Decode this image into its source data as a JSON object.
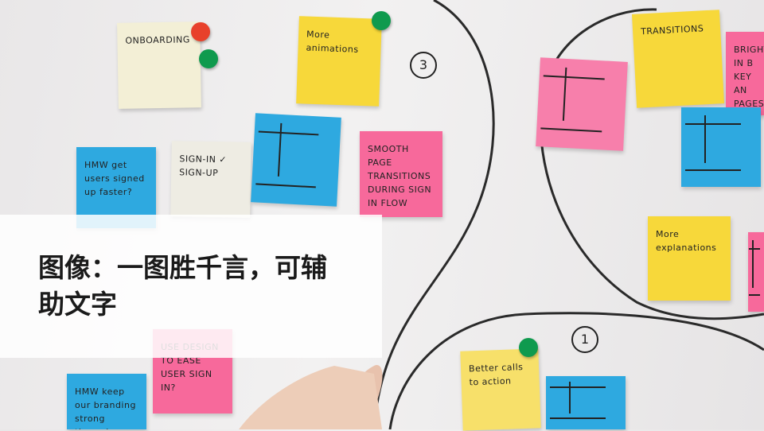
{
  "caption": {
    "title": "图像：一图胜千言，可辅助文字"
  },
  "notes": [
    {
      "label": "ONBOARDING"
    },
    {
      "label": "More animations"
    },
    {
      "label": "SMOOTH PAGE TRANSITIONS DURING SIGN IN FLOW"
    },
    {
      "label": "HMW get users signed up faster?"
    },
    {
      "label": "SIGN-IN ✓ SIGN-UP"
    },
    {
      "label": "TRANSITIONS"
    },
    {
      "label": "BRIGHT IN B KEY AN PAGES"
    },
    {
      "label": "More explanations"
    },
    {
      "label": "USE DESIGN TO EASE USER SIGN IN?"
    },
    {
      "label": "HMW keep our branding strong through"
    },
    {
      "label": "Better calls to action"
    }
  ],
  "markers": [
    "3",
    "1"
  ]
}
